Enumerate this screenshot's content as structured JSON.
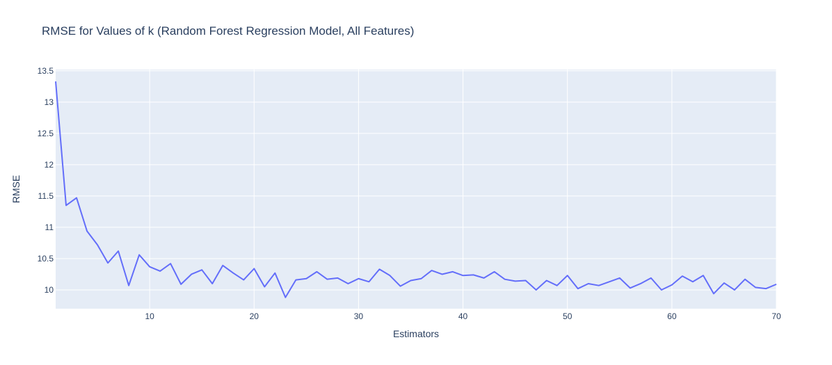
{
  "chart_data": {
    "type": "line",
    "title": "RMSE for Values of k (Random Forest Regression Model, All Features)",
    "xlabel": "Estimators",
    "ylabel": "RMSE",
    "xlim": [
      1,
      70
    ],
    "ylim": [
      9.7,
      13.52
    ],
    "x_ticks": [
      10,
      20,
      30,
      40,
      50,
      60,
      70
    ],
    "y_ticks": [
      10,
      10.5,
      11,
      11.5,
      12,
      12.5,
      13,
      13.5
    ],
    "grid": true,
    "colors": {
      "line": "#636efa",
      "plot_bg": "#e5ecf6",
      "grid": "#ffffff",
      "text": "#2a3f5f"
    },
    "series": [
      {
        "x": [
          1,
          2,
          3,
          4,
          5,
          6,
          7,
          8,
          9,
          10,
          11,
          12,
          13,
          14,
          15,
          16,
          17,
          18,
          19,
          20,
          21,
          22,
          23,
          24,
          25,
          26,
          27,
          28,
          29,
          30,
          31,
          32,
          33,
          34,
          35,
          36,
          37,
          38,
          39,
          40,
          41,
          42,
          43,
          44,
          45,
          46,
          47,
          48,
          49,
          50,
          51,
          52,
          53,
          54,
          55,
          56,
          57,
          58,
          59,
          60,
          61,
          62,
          63,
          64,
          65,
          66,
          67,
          68,
          69,
          70
        ],
        "values": [
          13.33,
          11.35,
          11.47,
          10.94,
          10.72,
          10.43,
          10.62,
          10.07,
          10.56,
          10.37,
          10.3,
          10.42,
          10.09,
          10.25,
          10.32,
          10.1,
          10.39,
          10.27,
          10.16,
          10.34,
          10.05,
          10.27,
          9.88,
          10.16,
          10.18,
          10.29,
          10.17,
          10.19,
          10.1,
          10.18,
          10.13,
          10.33,
          10.23,
          10.06,
          10.15,
          10.18,
          10.31,
          10.25,
          10.29,
          10.23,
          10.24,
          10.19,
          10.29,
          10.17,
          10.14,
          10.15,
          10.0,
          10.15,
          10.07,
          10.23,
          10.02,
          10.1,
          10.07,
          10.13,
          10.19,
          10.03,
          10.1,
          10.19,
          10.0,
          10.08,
          10.22,
          10.13,
          10.23,
          9.94,
          10.11,
          10.0,
          10.17,
          10.04,
          10.02,
          10.09
        ]
      }
    ]
  }
}
